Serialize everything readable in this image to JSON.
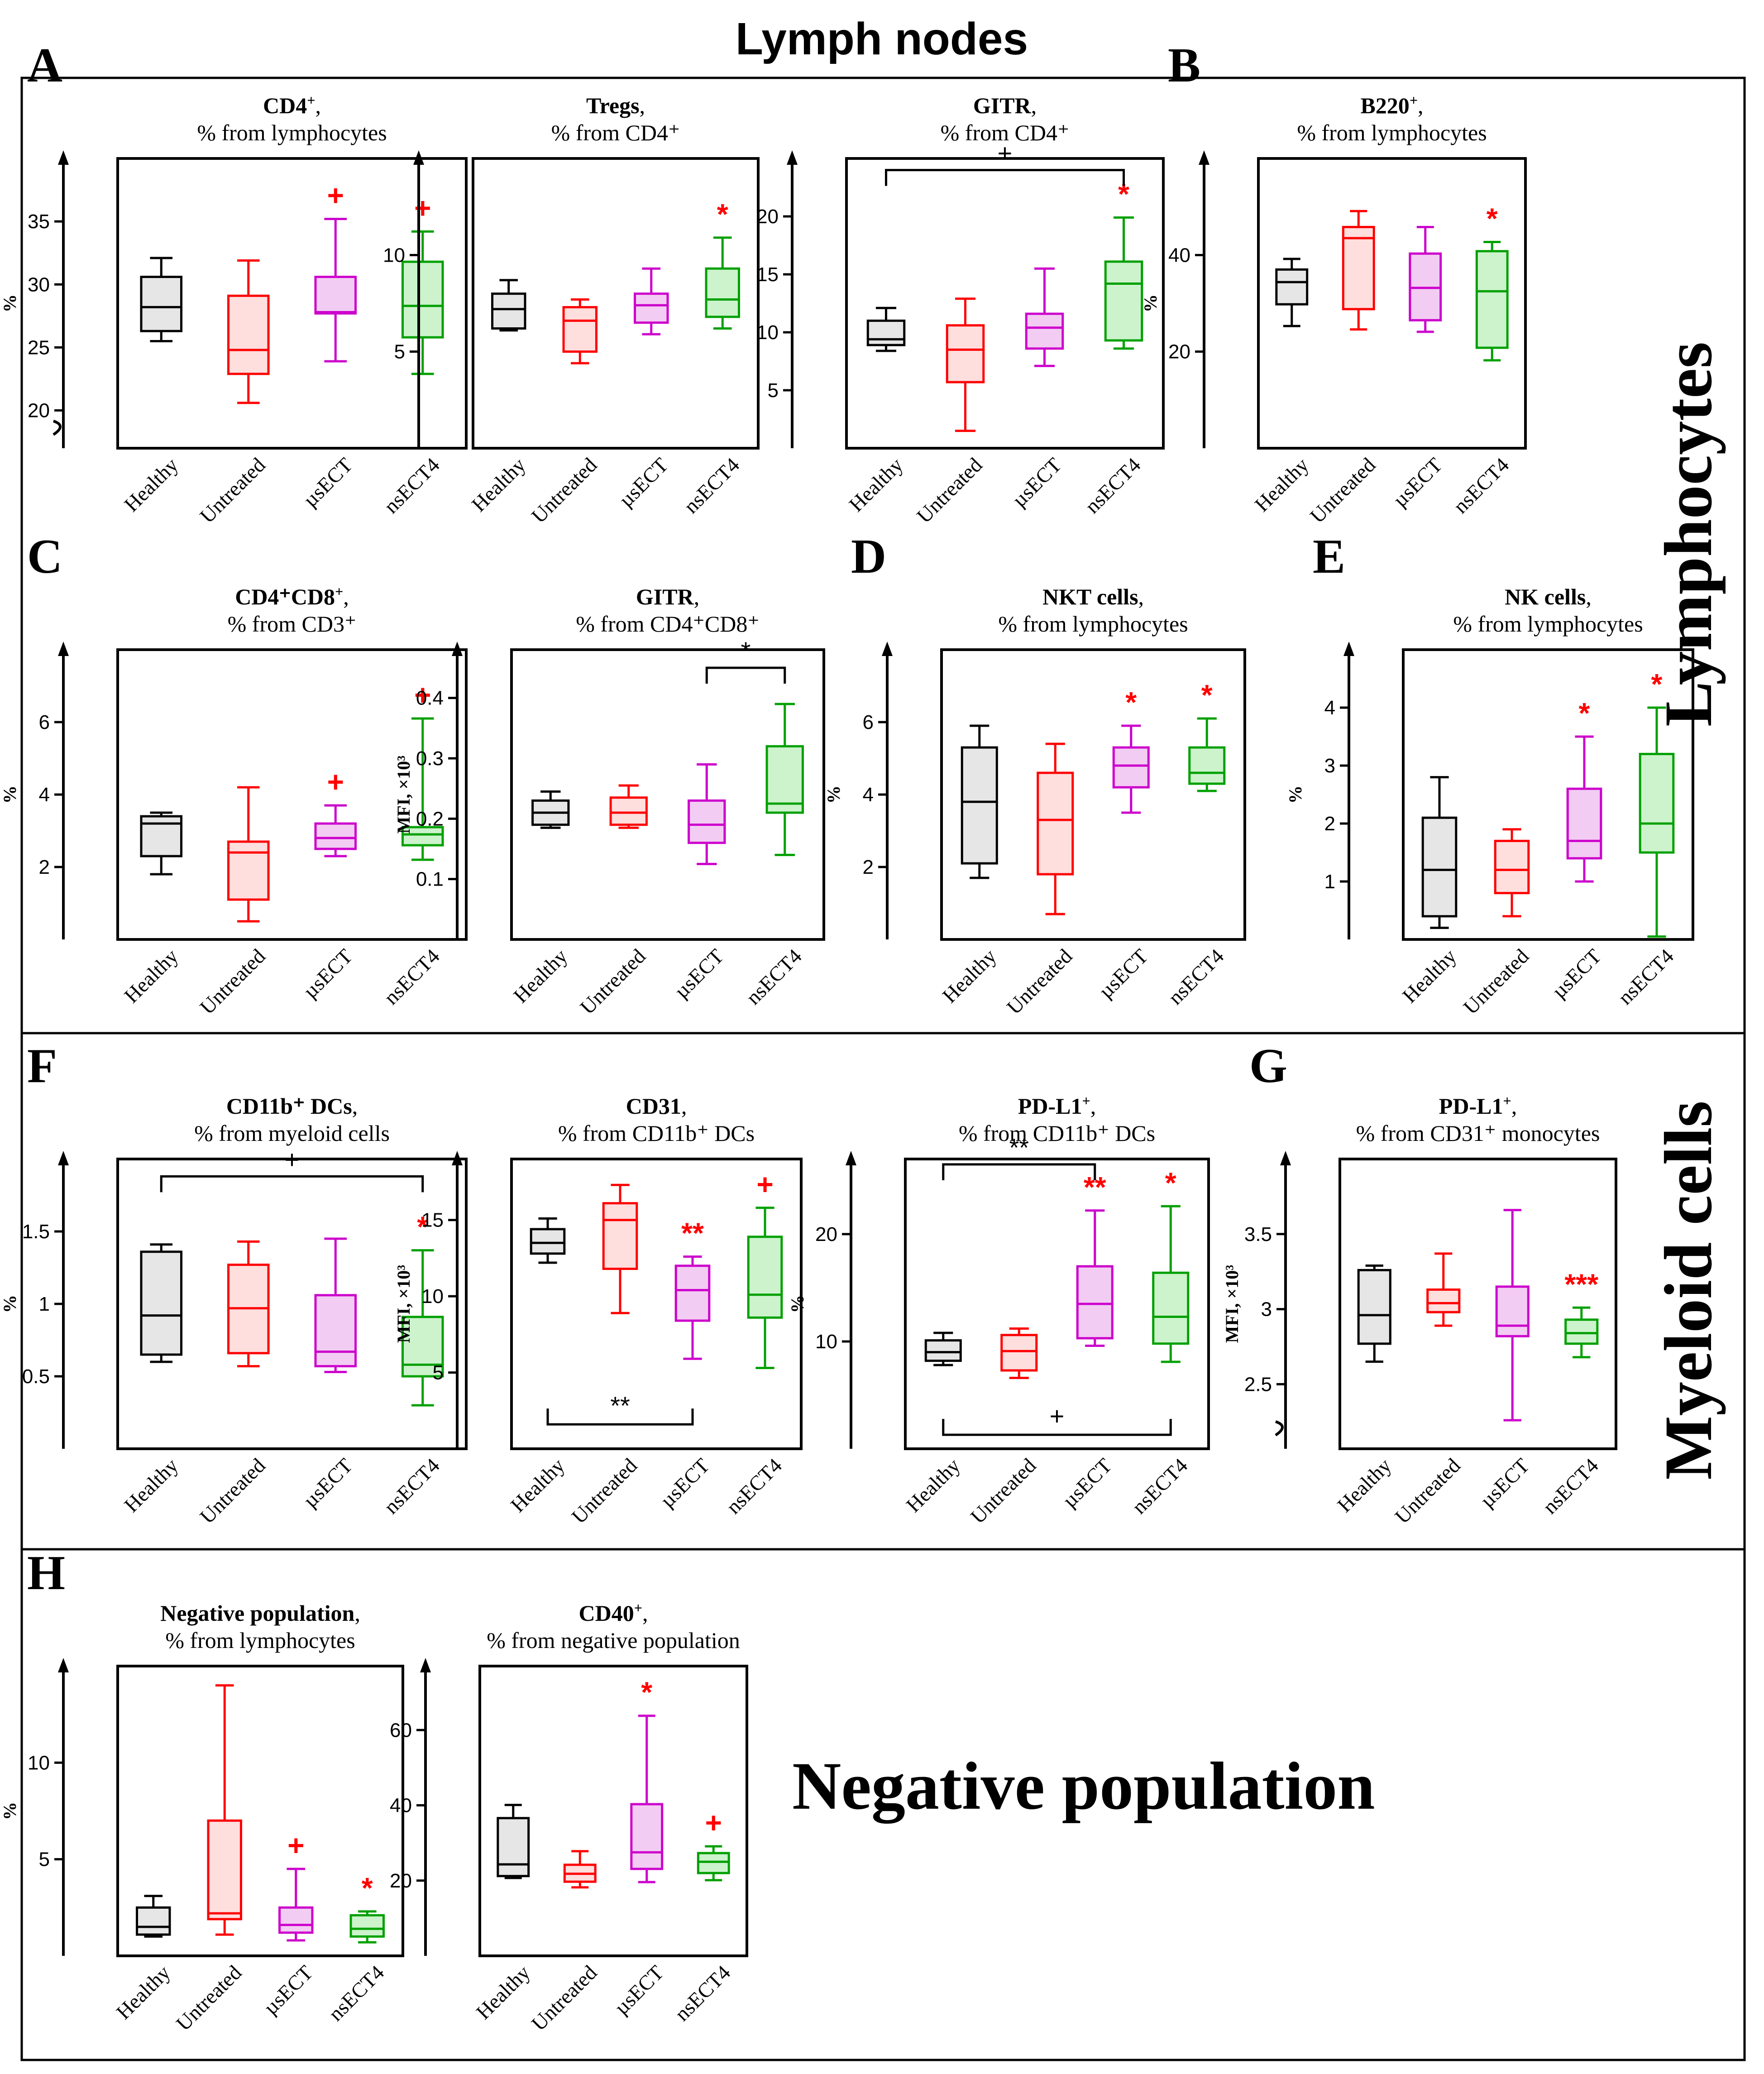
{
  "figure_title": "Lymph nodes",
  "sections": {
    "lymphocytes": "Lymphocytes",
    "myeloid": "Myeloid cells",
    "negative": "Negative population"
  },
  "group_colors": {
    "Healthy": "#000000",
    "Untreated": "#ff0000",
    "µsECT": "#cc00cc",
    "nsECT4": "#00a000"
  },
  "group_fills": {
    "Healthy": "#e6e6e6",
    "Untreated": "#ffdede",
    "µsECT": "#f3ccf3",
    "nsECT4": "#ccf3cc"
  },
  "chart_data": [
    {
      "id": "A1",
      "panel": "A",
      "type": "box",
      "title_bold": "CD4",
      "title_sup": "+",
      "title_rest": ",",
      "subtitle": "% from lymphocytes",
      "ylabel": "%",
      "ylim": [
        17,
        40
      ],
      "yticks": [
        20,
        25,
        30,
        35
      ],
      "axis_break": true,
      "categories": [
        "Healthy",
        "Untreated",
        "µsECT",
        "nsECT4"
      ],
      "boxes": [
        {
          "min": 25.5,
          "q1": 26.3,
          "med": 28.2,
          "q3": 30.6,
          "max": 32.1
        },
        {
          "min": 20.6,
          "q1": 22.9,
          "med": 24.8,
          "q3": 29.1,
          "max": 31.9
        },
        {
          "min": 23.9,
          "q1": 27.7,
          "med": 27.8,
          "q3": 30.6,
          "max": 35.2
        },
        {
          "min": 22.9,
          "q1": 25.8,
          "med": 28.3,
          "q3": 31.8,
          "max": 34.2
        }
      ],
      "marks": [
        {
          "index": 2,
          "text": "+"
        },
        {
          "index": 3,
          "text": "+"
        }
      ],
      "brackets": []
    },
    {
      "id": "A2",
      "panel": "",
      "type": "box",
      "title_bold": "Tregs",
      "title_sup": "",
      "title_rest": ",",
      "subtitle": "% from CD4⁺",
      "ylabel": "",
      "ylim": [
        0,
        15
      ],
      "yticks": [
        5,
        10
      ],
      "axis_break": false,
      "categories": [
        "Healthy",
        "Untreated",
        "µsECT",
        "nsECT4"
      ],
      "boxes": [
        {
          "min": 6.1,
          "q1": 6.2,
          "med": 7.2,
          "q3": 8.0,
          "max": 8.7
        },
        {
          "min": 4.4,
          "q1": 5.0,
          "med": 6.6,
          "q3": 7.3,
          "max": 7.7
        },
        {
          "min": 5.9,
          "q1": 6.5,
          "med": 7.4,
          "q3": 8.0,
          "max": 9.3
        },
        {
          "min": 6.2,
          "q1": 6.8,
          "med": 7.7,
          "q3": 9.3,
          "max": 10.9
        }
      ],
      "marks": [
        {
          "index": 3,
          "text": "*"
        }
      ],
      "brackets": []
    },
    {
      "id": "A3",
      "panel": "",
      "type": "box",
      "title_bold": "GITR",
      "title_sup": "",
      "title_rest": ",",
      "subtitle": "% from CD4⁺",
      "ylabel": "",
      "ylim": [
        0,
        25
      ],
      "yticks": [
        5,
        10,
        15,
        20
      ],
      "axis_break": false,
      "categories": [
        "Healthy",
        "Untreated",
        "µsECT",
        "nsECT4"
      ],
      "boxes": [
        {
          "min": 8.4,
          "q1": 8.9,
          "med": 9.4,
          "q3": 11.0,
          "max": 12.1
        },
        {
          "min": 1.5,
          "q1": 5.7,
          "med": 8.5,
          "q3": 10.6,
          "max": 12.9
        },
        {
          "min": 7.1,
          "q1": 8.6,
          "med": 10.4,
          "q3": 11.6,
          "max": 15.5
        },
        {
          "min": 8.6,
          "q1": 9.3,
          "med": 14.2,
          "q3": 16.1,
          "max": 19.9
        }
      ],
      "marks": [
        {
          "index": 3,
          "text": "*"
        }
      ],
      "brackets": [
        {
          "from": 0,
          "to": 3,
          "y": 24,
          "dir": "top",
          "label": "+"
        }
      ]
    },
    {
      "id": "B",
      "panel": "B",
      "type": "box",
      "title_bold": "B220",
      "title_sup": "+",
      "title_rest": ",",
      "subtitle": "% from lymphocytes",
      "ylabel": "%",
      "ylim": [
        0,
        60
      ],
      "yticks": [
        20,
        40
      ],
      "axis_break": false,
      "categories": [
        "Healthy",
        "Untreated",
        "µsECT",
        "nsECT4"
      ],
      "boxes": [
        {
          "min": 25.3,
          "q1": 29.8,
          "med": 34.4,
          "q3": 37.0,
          "max": 39.2
        },
        {
          "min": 24.6,
          "q1": 28.8,
          "med": 43.5,
          "q3": 45.8,
          "max": 49.1
        },
        {
          "min": 24.1,
          "q1": 26.5,
          "med": 33.2,
          "q3": 40.3,
          "max": 45.8
        },
        {
          "min": 18.2,
          "q1": 20.8,
          "med": 32.5,
          "q3": 40.8,
          "max": 42.7
        }
      ],
      "marks": [
        {
          "index": 3,
          "text": "*"
        }
      ],
      "brackets": []
    },
    {
      "id": "C1",
      "panel": "C",
      "type": "box",
      "title_bold": "CD4⁺CD8",
      "title_sup": "+",
      "title_rest": ",",
      "subtitle": "% from CD3⁺",
      "ylabel": "%",
      "ylim": [
        0,
        8
      ],
      "yticks": [
        2,
        4,
        6
      ],
      "axis_break": false,
      "categories": [
        "Healthy",
        "Untreated",
        "µsECT",
        "nsECT4"
      ],
      "boxes": [
        {
          "min": 1.8,
          "q1": 2.3,
          "med": 3.2,
          "q3": 3.4,
          "max": 3.5
        },
        {
          "min": 0.5,
          "q1": 1.1,
          "med": 2.4,
          "q3": 2.7,
          "max": 4.2
        },
        {
          "min": 2.3,
          "q1": 2.5,
          "med": 2.8,
          "q3": 3.2,
          "max": 3.7
        },
        {
          "min": 2.2,
          "q1": 2.6,
          "med": 2.9,
          "q3": 3.1,
          "max": 6.1
        }
      ],
      "marks": [
        {
          "index": 2,
          "text": "+"
        },
        {
          "index": 3,
          "text": "+"
        }
      ],
      "brackets": []
    },
    {
      "id": "C2",
      "panel": "",
      "type": "box",
      "title_bold": "GITR",
      "title_sup": "",
      "title_rest": ",",
      "subtitle": "% from CD4⁺CD8⁺",
      "ylabel": "MFI, ×10³",
      "ylim": [
        0,
        0.48
      ],
      "yticks": [
        0.1,
        0.2,
        0.3,
        0.4
      ],
      "axis_break": false,
      "categories": [
        "Healthy",
        "Untreated",
        "µsECT",
        "nsECT4"
      ],
      "boxes": [
        {
          "min": 0.185,
          "q1": 0.19,
          "med": 0.21,
          "q3": 0.23,
          "max": 0.245
        },
        {
          "min": 0.185,
          "q1": 0.19,
          "med": 0.21,
          "q3": 0.235,
          "max": 0.255
        },
        {
          "min": 0.125,
          "q1": 0.16,
          "med": 0.19,
          "q3": 0.23,
          "max": 0.29
        },
        {
          "min": 0.14,
          "q1": 0.21,
          "med": 0.225,
          "q3": 0.32,
          "max": 0.39
        }
      ],
      "marks": [],
      "brackets": [
        {
          "from": 2,
          "to": 3,
          "y": 0.45,
          "dir": "top",
          "label": "*"
        }
      ]
    },
    {
      "id": "D",
      "panel": "D",
      "type": "box",
      "title_bold": "NKT cells",
      "title_sup": "",
      "title_rest": ",",
      "subtitle": "% from lymphocytes",
      "ylabel": "%",
      "ylim": [
        0,
        8
      ],
      "yticks": [
        2,
        4,
        6
      ],
      "axis_break": false,
      "categories": [
        "Healthy",
        "Untreated",
        "µsECT",
        "nsECT4"
      ],
      "boxes": [
        {
          "min": 1.7,
          "q1": 2.1,
          "med": 3.8,
          "q3": 5.3,
          "max": 5.9
        },
        {
          "min": 0.7,
          "q1": 1.8,
          "med": 3.3,
          "q3": 4.6,
          "max": 5.4
        },
        {
          "min": 3.5,
          "q1": 4.2,
          "med": 4.8,
          "q3": 5.3,
          "max": 5.9
        },
        {
          "min": 4.1,
          "q1": 4.3,
          "med": 4.6,
          "q3": 5.3,
          "max": 6.1
        }
      ],
      "marks": [
        {
          "index": 2,
          "text": "*"
        },
        {
          "index": 3,
          "text": "*"
        }
      ],
      "brackets": []
    },
    {
      "id": "E",
      "panel": "E",
      "type": "box",
      "title_bold": "NK cells",
      "title_sup": "",
      "title_rest": ",",
      "subtitle": "% from lymphocytes",
      "ylabel": "%",
      "ylim": [
        0,
        5
      ],
      "yticks": [
        1,
        2,
        3,
        4
      ],
      "axis_break": false,
      "categories": [
        "Healthy",
        "Untreated",
        "µsECT",
        "nsECT4"
      ],
      "boxes": [
        {
          "min": 0.2,
          "q1": 0.4,
          "med": 1.2,
          "q3": 2.1,
          "max": 2.8
        },
        {
          "min": 0.4,
          "q1": 0.8,
          "med": 1.2,
          "q3": 1.7,
          "max": 1.9
        },
        {
          "min": 1.0,
          "q1": 1.4,
          "med": 1.7,
          "q3": 2.6,
          "max": 3.5
        },
        {
          "min": 0.05,
          "q1": 1.5,
          "med": 2.0,
          "q3": 3.2,
          "max": 4.0
        }
      ],
      "marks": [
        {
          "index": 2,
          "text": "*"
        },
        {
          "index": 3,
          "text": "*"
        }
      ],
      "brackets": []
    },
    {
      "id": "F1",
      "panel": "F",
      "type": "box",
      "title_bold": "CD11b⁺ DCs",
      "title_sup": "",
      "title_rest": ",",
      "subtitle": "% from myeloid cells",
      "ylabel": "%",
      "ylim": [
        0,
        2
      ],
      "yticks": [
        0.5,
        1.0,
        1.5
      ],
      "axis_break": false,
      "categories": [
        "Healthy",
        "Untreated",
        "µsECT",
        "nsECT4"
      ],
      "boxes": [
        {
          "min": 0.6,
          "q1": 0.65,
          "med": 0.92,
          "q3": 1.36,
          "max": 1.41
        },
        {
          "min": 0.57,
          "q1": 0.66,
          "med": 0.97,
          "q3": 1.27,
          "max": 1.43
        },
        {
          "min": 0.53,
          "q1": 0.57,
          "med": 0.67,
          "q3": 1.06,
          "max": 1.45
        },
        {
          "min": 0.3,
          "q1": 0.5,
          "med": 0.58,
          "q3": 0.91,
          "max": 1.37
        }
      ],
      "marks": [
        {
          "index": 3,
          "text": "*"
        }
      ],
      "brackets": [
        {
          "from": 0,
          "to": 3,
          "y": 1.88,
          "dir": "top",
          "label": "+"
        }
      ]
    },
    {
      "id": "F2",
      "panel": "",
      "type": "box",
      "title_bold": "CD31",
      "title_sup": "",
      "title_rest": ",",
      "subtitle": "% from CD11b⁺ DCs",
      "ylabel": "MFI, ×10³",
      "ylim": [
        0,
        19
      ],
      "yticks": [
        5,
        10,
        15
      ],
      "axis_break": false,
      "categories": [
        "Healthy",
        "Untreated",
        "µsECT",
        "nsECT4"
      ],
      "boxes": [
        {
          "min": 12.2,
          "q1": 12.8,
          "med": 13.5,
          "q3": 14.4,
          "max": 15.1
        },
        {
          "min": 8.9,
          "q1": 11.8,
          "med": 15.0,
          "q3": 16.1,
          "max": 17.3
        },
        {
          "min": 5.9,
          "q1": 8.4,
          "med": 10.4,
          "q3": 12.0,
          "max": 12.6
        },
        {
          "min": 5.3,
          "q1": 8.6,
          "med": 10.1,
          "q3": 13.9,
          "max": 15.8
        }
      ],
      "marks": [
        {
          "index": 2,
          "text": "**"
        },
        {
          "index": 3,
          "text": "+"
        }
      ],
      "brackets": [
        {
          "from": 0,
          "to": 2,
          "y": 1.6,
          "dir": "bottom",
          "label": "**"
        }
      ]
    },
    {
      "id": "F3",
      "panel": "",
      "type": "box",
      "title_bold": "PD-L1",
      "title_sup": "+",
      "title_rest": ",",
      "subtitle": "% from CD11b⁺ DCs",
      "ylabel": "%",
      "ylim": [
        0,
        27
      ],
      "yticks": [
        10,
        20
      ],
      "axis_break": false,
      "categories": [
        "Healthy",
        "Untreated",
        "µsECT",
        "nsECT4"
      ],
      "boxes": [
        {
          "min": 7.8,
          "q1": 8.2,
          "med": 9.0,
          "q3": 10.1,
          "max": 10.8
        },
        {
          "min": 6.6,
          "q1": 7.3,
          "med": 9.1,
          "q3": 10.6,
          "max": 11.2
        },
        {
          "min": 9.6,
          "q1": 10.3,
          "med": 13.5,
          "q3": 17.0,
          "max": 22.2
        },
        {
          "min": 8.1,
          "q1": 9.8,
          "med": 12.3,
          "q3": 16.4,
          "max": 22.6
        }
      ],
      "marks": [
        {
          "index": 2,
          "text": "**"
        },
        {
          "index": 3,
          "text": "*"
        }
      ],
      "brackets": [
        {
          "from": 0,
          "to": 2,
          "y": 26.5,
          "dir": "top",
          "label": "**"
        },
        {
          "from": 0,
          "to": 3,
          "y": 1.3,
          "dir": "bottom",
          "label": "+"
        }
      ]
    },
    {
      "id": "G",
      "panel": "G",
      "type": "box",
      "title_bold": "PD-L1",
      "title_sup": "+",
      "title_rest": ",",
      "subtitle": "% from CD31⁺ monocytes",
      "ylabel": "MFI, ×10³",
      "ylim": [
        2.07,
        4.0
      ],
      "yticks": [
        2.5,
        3.0,
        3.5
      ],
      "axis_break": true,
      "categories": [
        "Healthy",
        "Untreated",
        "µsECT",
        "nsECT4"
      ],
      "boxes": [
        {
          "min": 2.65,
          "q1": 2.77,
          "med": 2.96,
          "q3": 3.26,
          "max": 3.29
        },
        {
          "min": 2.89,
          "q1": 2.98,
          "med": 3.04,
          "q3": 3.13,
          "max": 3.37
        },
        {
          "min": 2.26,
          "q1": 2.82,
          "med": 2.89,
          "q3": 3.15,
          "max": 3.66
        },
        {
          "min": 2.68,
          "q1": 2.77,
          "med": 2.84,
          "q3": 2.93,
          "max": 3.01
        }
      ],
      "marks": [
        {
          "index": 3,
          "text": "***"
        }
      ],
      "brackets": []
    },
    {
      "id": "H1",
      "panel": "H",
      "type": "box",
      "title_bold": "Negative population",
      "title_sup": "",
      "title_rest": ",",
      "subtitle": "% from lymphocytes",
      "ylabel": "%",
      "ylim": [
        0,
        15
      ],
      "yticks": [
        5,
        10
      ],
      "axis_break": false,
      "categories": [
        "Healthy",
        "Untreated",
        "µsECT",
        "nsECT4"
      ],
      "boxes": [
        {
          "min": 1.0,
          "q1": 1.1,
          "med": 1.5,
          "q3": 2.5,
          "max": 3.1
        },
        {
          "min": 1.1,
          "q1": 1.9,
          "med": 2.2,
          "q3": 7.0,
          "max": 14.0
        },
        {
          "min": 0.8,
          "q1": 1.2,
          "med": 1.6,
          "q3": 2.5,
          "max": 4.5
        },
        {
          "min": 0.7,
          "q1": 1.0,
          "med": 1.4,
          "q3": 2.1,
          "max": 2.3
        }
      ],
      "marks": [
        {
          "index": 2,
          "text": "+"
        },
        {
          "index": 3,
          "text": "*"
        }
      ],
      "brackets": []
    },
    {
      "id": "H2",
      "panel": "",
      "type": "box",
      "title_bold": "CD40",
      "title_sup": "+",
      "title_rest": ",",
      "subtitle": "% from negative population",
      "ylabel": "",
      "ylim": [
        0,
        77
      ],
      "yticks": [
        20,
        40,
        60
      ],
      "axis_break": false,
      "categories": [
        "Healthy",
        "Untreated",
        "µsECT",
        "nsECT4"
      ],
      "boxes": [
        {
          "min": 20.7,
          "q1": 21.2,
          "med": 24.3,
          "q3": 36.6,
          "max": 40.1
        },
        {
          "min": 18.2,
          "q1": 19.7,
          "med": 21.8,
          "q3": 24.2,
          "max": 27.8
        },
        {
          "min": 19.6,
          "q1": 23.1,
          "med": 27.5,
          "q3": 40.3,
          "max": 63.8
        },
        {
          "min": 20.1,
          "q1": 22.0,
          "med": 25.0,
          "q3": 27.3,
          "max": 29.1
        }
      ],
      "marks": [
        {
          "index": 2,
          "text": "*"
        },
        {
          "index": 3,
          "text": "+"
        }
      ],
      "brackets": []
    }
  ]
}
